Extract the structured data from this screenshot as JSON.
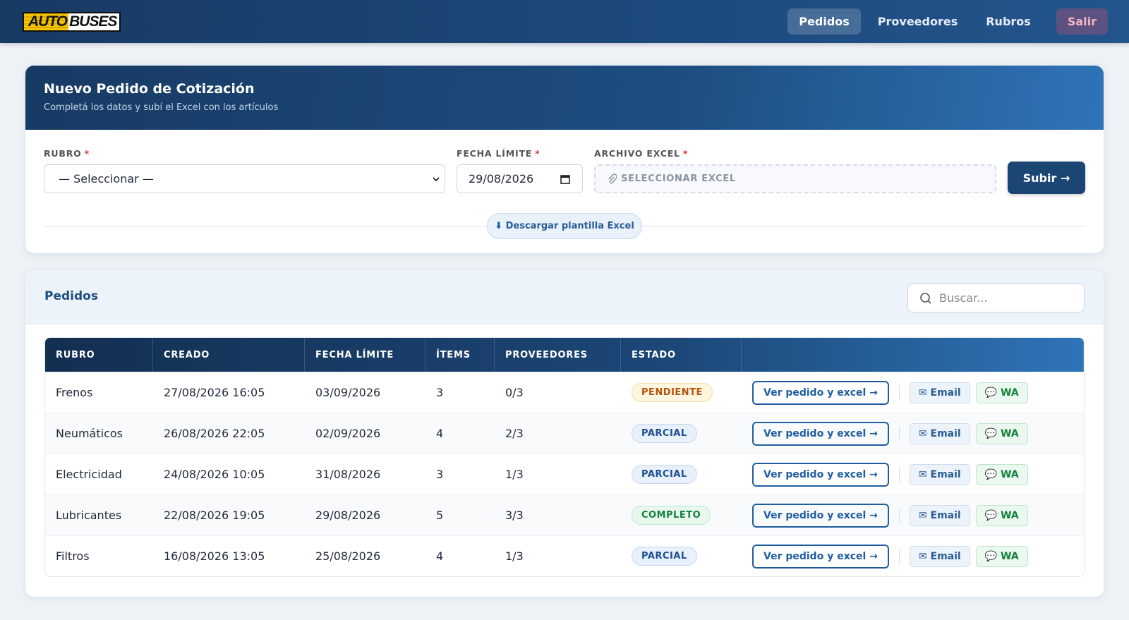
{
  "nav": {
    "logo": {
      "part1": "AUTO",
      "part2": "BUSES"
    },
    "links": [
      "Pedidos",
      "Proveedores",
      "Rubros",
      "Salir"
    ]
  },
  "form": {
    "title": "Nuevo Pedido de Cotización",
    "subtitle": "Completá los datos y subí el Excel con los artículos",
    "required": "*",
    "fields": [
      {
        "label": "RUBRO",
        "value": "— Seleccionar —"
      },
      {
        "label": "FECHA LÍMITE",
        "value": "29/08/2026"
      },
      {
        "label": "ARCHIVO EXCEL",
        "value": "SELECCIONAR EXCEL"
      }
    ],
    "submit": "Subir →",
    "template": "⬇ Descargar plantilla Excel"
  },
  "list": {
    "title": "Pedidos",
    "search_placeholder": "Buscar...",
    "table": {
      "columns": [
        "RUBRO",
        "CREADO",
        "FECHA LÍMITE",
        "ÍTEMS",
        "PROVEEDORES",
        "ESTADO"
      ],
      "rows": [
        [
          "Frenos",
          "27/08/2026 16:05",
          "03/09/2026",
          "3",
          "0/3",
          "PENDIENTE"
        ],
        [
          "Neumáticos",
          "26/08/2026 22:05",
          "02/09/2026",
          "4",
          "2/3",
          "PARCIAL"
        ],
        [
          "Electricidad",
          "24/08/2026 10:05",
          "31/08/2026",
          "3",
          "1/3",
          "PARCIAL"
        ],
        [
          "Lubricantes",
          "22/08/2026 19:05",
          "29/08/2026",
          "5",
          "3/3",
          "COMPLETO"
        ],
        [
          "Filtros",
          "16/08/2026 13:05",
          "25/08/2026",
          "4",
          "1/3",
          "PARCIAL"
        ]
      ],
      "status_tones": [
        "warning",
        "info",
        "info",
        "success",
        "info"
      ]
    },
    "actions": {
      "view": "Ver pedido y excel →",
      "email": "✉ Email",
      "whatsapp": "💬 WA"
    }
  }
}
